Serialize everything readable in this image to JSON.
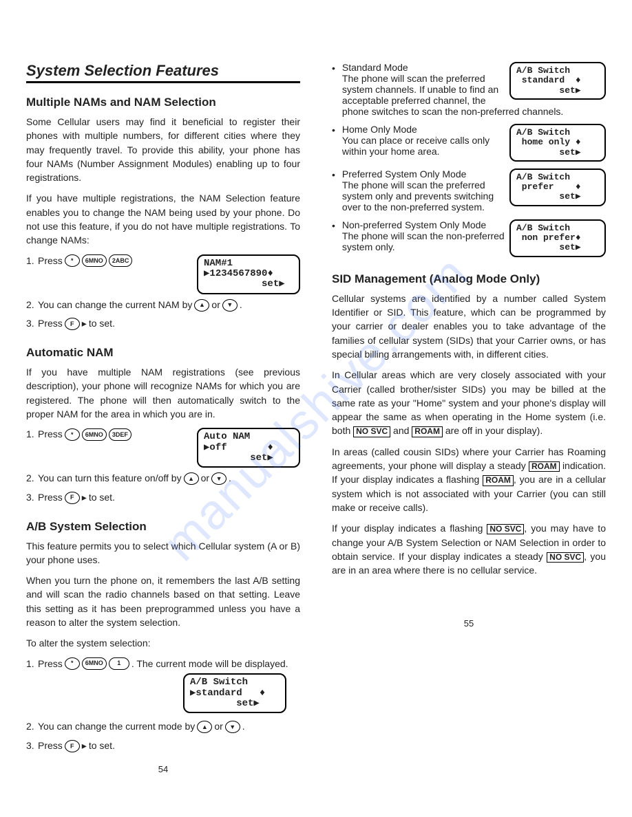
{
  "watermark": "manualshive.com",
  "left": {
    "main_title": "System Selection Features",
    "s1": {
      "heading": "Multiple NAMs and NAM Selection",
      "p1": "Some Cellular users may find it beneficial to register their phones with multiple numbers, for different cities where they may frequently travel. To provide this ability, your phone has four NAMs (Number Assignment Modules) enabling up to four registrations.",
      "p2": "If you have multiple registrations, the NAM Selection feature enables you to change the NAM being used by your phone. Do not use this feature, if you do not have multiple registrations. To change NAMs:",
      "step1_a": "1.",
      "step1_b": "Press",
      "btn_star": "*",
      "btn_6": "6MNO",
      "btn_2": "2ABC",
      "lcd1_l1": "NAM#1",
      "lcd1_l2": "▶1234567890♦",
      "lcd1_l3": "          set▶",
      "step2_a": "2.",
      "step2_b": "You can change the current NAM by",
      "or": "or",
      "step3_a": "3.",
      "step3_b": "Press",
      "step3_c": "to set.",
      "btn_f": "F"
    },
    "s2": {
      "heading": "Automatic NAM",
      "p1": "If you have multiple NAM registrations (see previous description), your phone will recognize NAMs for which you are registered. The phone will then automatically switch to the proper NAM for the area in which you are in.",
      "step1_a": "1.",
      "step1_b": "Press",
      "btn_3": "3DEF",
      "lcd_l1": "Auto NAM",
      "lcd_l2": "▶off       ♦",
      "lcd_l3": "        set▶",
      "step2_a": "2.",
      "step2_b": "You can turn this feature on/off by",
      "step3_a": "3.",
      "step3_b": "Press",
      "step3_c": "to set."
    },
    "s3": {
      "heading": "A/B System Selection",
      "p1": "This feature permits you to select which Cellular system (A or B) your phone uses.",
      "p2": "When you turn the phone on, it remembers the last A/B setting and will scan the radio channels based on that setting. Leave this setting as it has been preprogrammed unless you have a reason to alter the system selection.",
      "p3": "To alter the system selection:",
      "step1_a": "1.",
      "step1_b": "Press",
      "step1_c": ". The current mode will be displayed.",
      "btn_1": "1",
      "lcd_l1": "A/B Switch",
      "lcd_l2": "▶standard   ♦",
      "lcd_l3": "        set▶",
      "step2_a": "2.",
      "step2_b": "You can change the current mode by",
      "step3_a": "3.",
      "step3_b": "Press",
      "step3_c": "to set."
    },
    "pagenum": "54"
  },
  "right": {
    "bullets": [
      {
        "title": "Standard Mode",
        "body": "The phone will scan the preferred system channels. If unable to find an acceptable preferred channel, the phone switches to scan the non-preferred channels.",
        "lcd": [
          "A/B Switch",
          " standard  ♦",
          "        set▶"
        ]
      },
      {
        "title": "Home Only Mode",
        "body": "You can place or receive calls only within your home area.",
        "lcd": [
          "A/B Switch",
          " home only ♦",
          "        set▶"
        ]
      },
      {
        "title": "Preferred System Only Mode",
        "body": "The phone will scan the preferred system only and prevents switching over to the non-preferred system.",
        "lcd": [
          "A/B Switch",
          " prefer    ♦",
          "        set▶"
        ]
      },
      {
        "title": "Non-preferred System Only Mode",
        "body": "The phone will scan the non-preferred system only.",
        "lcd": [
          "A/B Switch",
          " non prefer♦",
          "        set▶"
        ]
      }
    ],
    "sid": {
      "heading": "SID Management (Analog Mode Only)",
      "p1": "Cellular systems are identified by a number called System Identifier or SID. This feature, which can be programmed by your carrier or dealer enables you to take advantage of the families of cellular system (SIDs) that your Carrier owns, or has special billing arrangements with, in different cities.",
      "p2a": "In Cellular areas which are very closely associated with your Carrier (called brother/sister SIDs) you may be billed at the same rate as your \"Home\" system and your phone's display will appear the same as when operating in the Home system (i.e. both ",
      "p2b": " and ",
      "p2c": " are off in your display).",
      "p3a": "In areas (called cousin SIDs) where your Carrier has Roaming agreements, your phone will display a steady ",
      "p3b": " indication. If your display indicates a flashing ",
      "p3c": ", you are in a cellular system which is not associated with your Carrier (you can still make or receive calls).",
      "p4a": "If your display indicates a flashing ",
      "p4b": ", you may have to change your A/B System Selection or NAM Selection in order to obtain service. If your display indicates a steady ",
      "p4c": ", you are in an area where there is no cellular service.",
      "nosvc": "NO SVC",
      "roam": "ROAM"
    },
    "pagenum": "55"
  }
}
